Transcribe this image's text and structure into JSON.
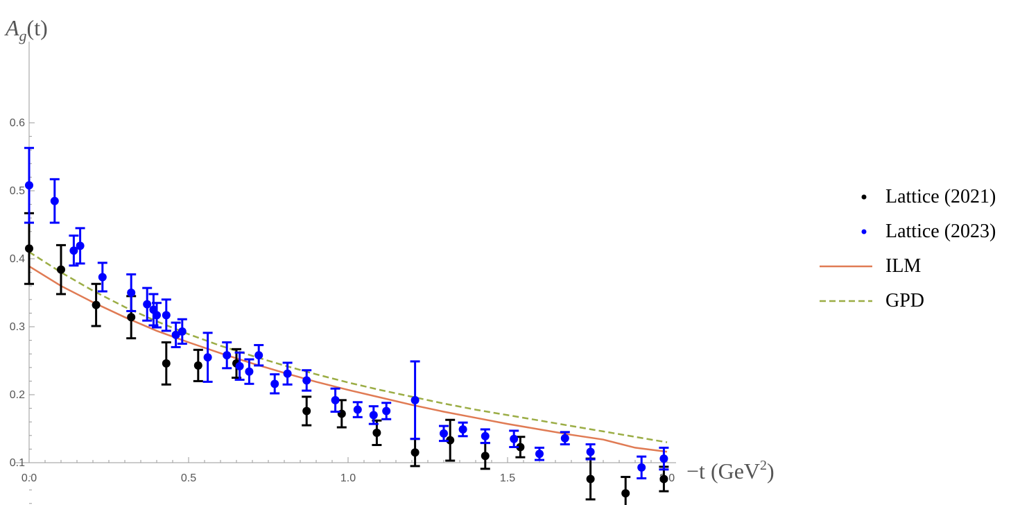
{
  "chart_data": {
    "type": "scatter",
    "title": "",
    "ylabel": {
      "main": "A",
      "sub": "g",
      "suffix": "(t)"
    },
    "xlabel": {
      "main": "−t (GeV",
      "sup": "2",
      "suffix": ")"
    },
    "xlim": [
      0,
      2.05
    ],
    "ylim": [
      0.0,
      0.6
    ],
    "x_ticks": [
      0.0,
      0.5,
      1.0,
      1.5,
      2.0
    ],
    "x_tick_labels": [
      "0.0",
      "0.5",
      "1.0",
      "1.5",
      "2.0"
    ],
    "y_ticks": [
      0.1,
      0.2,
      0.3,
      0.4,
      0.5,
      0.6
    ],
    "y_tick_labels": [
      "0.1",
      "0.2",
      "0.3",
      "0.4",
      "0.5",
      "0.6"
    ],
    "grid": false,
    "legend_position": "right",
    "series": [
      {
        "name": "Lattice (2021)",
        "kind": "errorbar",
        "color": "#000000",
        "points": [
          {
            "x": 0.0,
            "y": 0.415,
            "err": 0.052
          },
          {
            "x": 0.1,
            "y": 0.384,
            "err": 0.036
          },
          {
            "x": 0.21,
            "y": 0.332,
            "err": 0.031
          },
          {
            "x": 0.32,
            "y": 0.314,
            "err": 0.031
          },
          {
            "x": 0.43,
            "y": 0.246,
            "err": 0.031
          },
          {
            "x": 0.53,
            "y": 0.243,
            "err": 0.023
          },
          {
            "x": 0.65,
            "y": 0.246,
            "err": 0.021
          },
          {
            "x": 0.87,
            "y": 0.176,
            "err": 0.021
          },
          {
            "x": 0.98,
            "y": 0.172,
            "err": 0.02
          },
          {
            "x": 1.09,
            "y": 0.144,
            "err": 0.018
          },
          {
            "x": 1.21,
            "y": 0.115,
            "err": 0.02
          },
          {
            "x": 1.32,
            "y": 0.133,
            "err": 0.03
          },
          {
            "x": 1.43,
            "y": 0.11,
            "err": 0.019
          },
          {
            "x": 1.54,
            "y": 0.123,
            "err": 0.015
          },
          {
            "x": 1.76,
            "y": 0.076,
            "err": 0.03
          },
          {
            "x": 1.87,
            "y": 0.055,
            "err": 0.024
          },
          {
            "x": 1.99,
            "y": 0.076,
            "err": 0.018
          }
        ]
      },
      {
        "name": "Lattice (2023)",
        "kind": "errorbar",
        "color": "#0000ff",
        "points": [
          {
            "x": 0.0,
            "y": 0.508,
            "err": 0.055
          },
          {
            "x": 0.08,
            "y": 0.485,
            "err": 0.032
          },
          {
            "x": 0.14,
            "y": 0.412,
            "err": 0.022
          },
          {
            "x": 0.16,
            "y": 0.419,
            "err": 0.026
          },
          {
            "x": 0.23,
            "y": 0.373,
            "err": 0.021
          },
          {
            "x": 0.32,
            "y": 0.35,
            "err": 0.027
          },
          {
            "x": 0.37,
            "y": 0.333,
            "err": 0.024
          },
          {
            "x": 0.39,
            "y": 0.325,
            "err": 0.023
          },
          {
            "x": 0.4,
            "y": 0.317,
            "err": 0.018
          },
          {
            "x": 0.43,
            "y": 0.317,
            "err": 0.023
          },
          {
            "x": 0.46,
            "y": 0.288,
            "err": 0.018
          },
          {
            "x": 0.48,
            "y": 0.293,
            "err": 0.018
          },
          {
            "x": 0.56,
            "y": 0.255,
            "err": 0.036
          },
          {
            "x": 0.62,
            "y": 0.258,
            "err": 0.019
          },
          {
            "x": 0.66,
            "y": 0.242,
            "err": 0.02
          },
          {
            "x": 0.69,
            "y": 0.234,
            "err": 0.018
          },
          {
            "x": 0.72,
            "y": 0.258,
            "err": 0.015
          },
          {
            "x": 0.77,
            "y": 0.216,
            "err": 0.014
          },
          {
            "x": 0.81,
            "y": 0.231,
            "err": 0.016
          },
          {
            "x": 0.87,
            "y": 0.221,
            "err": 0.015
          },
          {
            "x": 0.96,
            "y": 0.192,
            "err": 0.017
          },
          {
            "x": 1.03,
            "y": 0.178,
            "err": 0.011
          },
          {
            "x": 1.08,
            "y": 0.17,
            "err": 0.013
          },
          {
            "x": 1.12,
            "y": 0.176,
            "err": 0.012
          },
          {
            "x": 1.21,
            "y": 0.192,
            "err": 0.057
          },
          {
            "x": 1.3,
            "y": 0.143,
            "err": 0.011
          },
          {
            "x": 1.36,
            "y": 0.149,
            "err": 0.01
          },
          {
            "x": 1.43,
            "y": 0.139,
            "err": 0.01
          },
          {
            "x": 1.52,
            "y": 0.135,
            "err": 0.012
          },
          {
            "x": 1.6,
            "y": 0.113,
            "err": 0.009
          },
          {
            "x": 1.68,
            "y": 0.136,
            "err": 0.009
          },
          {
            "x": 1.76,
            "y": 0.116,
            "err": 0.011
          },
          {
            "x": 1.92,
            "y": 0.093,
            "err": 0.016
          },
          {
            "x": 1.99,
            "y": 0.106,
            "err": 0.016
          }
        ]
      },
      {
        "name": "ILM",
        "kind": "line",
        "color": "#e07b54",
        "dash": "solid",
        "x": [
          0.0,
          0.1,
          0.2,
          0.3,
          0.4,
          0.5,
          0.6,
          0.7,
          0.8,
          0.9,
          1.0,
          1.1,
          1.2,
          1.3,
          1.4,
          1.5,
          1.6,
          1.7,
          1.8,
          1.9,
          2.0
        ],
        "y": [
          0.389,
          0.36,
          0.336,
          0.314,
          0.294,
          0.277,
          0.261,
          0.246,
          0.232,
          0.219,
          0.207,
          0.196,
          0.185,
          0.175,
          0.166,
          0.157,
          0.149,
          0.141,
          0.134,
          0.122,
          0.116
        ]
      },
      {
        "name": "GPD",
        "kind": "line",
        "color": "#9bad45",
        "dash": "dashed",
        "x": [
          0.0,
          0.1,
          0.2,
          0.3,
          0.4,
          0.5,
          0.6,
          0.7,
          0.8,
          0.9,
          1.0,
          1.1,
          1.2,
          1.3,
          1.4,
          1.5,
          1.6,
          1.7,
          1.8,
          1.9,
          2.0
        ],
        "y": [
          0.41,
          0.38,
          0.353,
          0.329,
          0.308,
          0.289,
          0.272,
          0.257,
          0.243,
          0.23,
          0.218,
          0.207,
          0.197,
          0.187,
          0.178,
          0.17,
          0.162,
          0.154,
          0.146,
          0.138,
          0.13
        ]
      }
    ]
  }
}
